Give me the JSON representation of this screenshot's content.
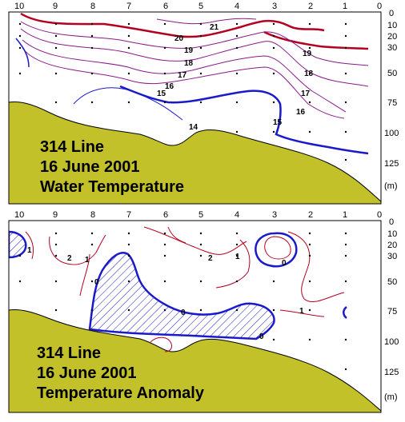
{
  "panels": [
    {
      "id": "water-temperature",
      "caption": [
        "314 Line",
        "16 June 2001",
        "Water Temperature"
      ],
      "station_labels": [
        "10",
        "9",
        "8",
        "7",
        "6",
        "5",
        "4",
        "3",
        "2",
        "1",
        "0"
      ],
      "depth_labels": [
        "0",
        "10",
        "20",
        "30",
        "50",
        "75",
        "100",
        "125"
      ],
      "depth_unit": "(m)",
      "contour_labels": [
        "21",
        "20",
        "19",
        "19",
        "18",
        "18",
        "17",
        "17",
        "16",
        "16",
        "15",
        "15",
        "14"
      ]
    },
    {
      "id": "temperature-anomaly",
      "caption": [
        "314 Line",
        "16 June 2001",
        "Temperature Anomaly"
      ],
      "station_labels": [
        "10",
        "9",
        "8",
        "7",
        "6",
        "5",
        "4",
        "3",
        "2",
        "1",
        "0"
      ],
      "depth_labels": [
        "0",
        "10",
        "20",
        "30",
        "50",
        "75",
        "100",
        "125"
      ],
      "depth_unit": "(m)",
      "contour_labels": [
        "1",
        "2",
        "1",
        "0",
        "2",
        "1",
        "0",
        "0",
        "0",
        "1"
      ]
    }
  ],
  "colors": {
    "seafloor": "#c2c12a",
    "warm_contour": "#b40020",
    "cold_contour": "#1a1acc",
    "thin_contour": "#8a1a8a",
    "background": "#ffffff"
  }
}
